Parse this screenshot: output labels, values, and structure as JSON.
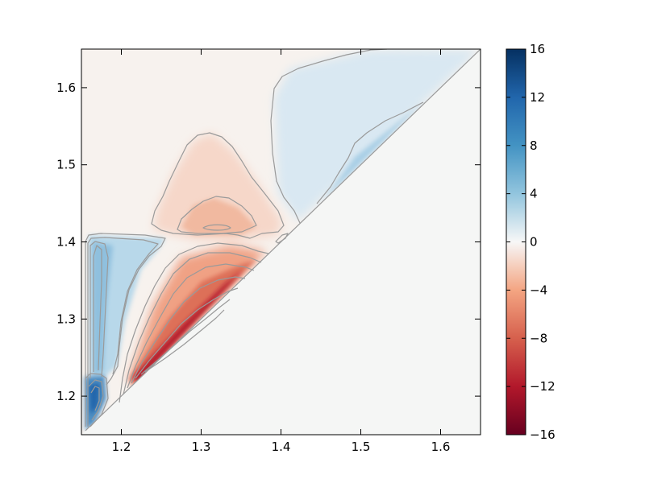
{
  "chart_data": {
    "type": "heatmap",
    "subtype": "filled-contour",
    "title": "",
    "xlabel": "",
    "ylabel": "",
    "xlim": [
      1.15,
      1.65
    ],
    "ylim": [
      1.15,
      1.65
    ],
    "xticks": [
      1.2,
      1.3,
      1.4,
      1.5,
      1.6
    ],
    "yticks": [
      1.2,
      1.3,
      1.4,
      1.5,
      1.6
    ],
    "xtick_labels": [
      "1.2",
      "1.3",
      "1.4",
      "1.5",
      "1.6"
    ],
    "ytick_labels": [
      "1.2",
      "1.3",
      "1.4",
      "1.5",
      "1.6"
    ],
    "colormap": "RdBu",
    "colormap_colors": {
      "min": "#67001f",
      "mid": "#f7f7f7",
      "max": "#053061"
    },
    "background_color": "#f5f6f5",
    "contour_color": "#9a9a9a",
    "domain": "upper triangle (y > x); lower triangle empty",
    "colorbar": {
      "range": [
        -16,
        16
      ],
      "ticks": [
        16,
        12,
        8,
        4,
        0,
        -4,
        -8,
        -12,
        -16
      ],
      "tick_labels": [
        "16",
        "12",
        "8",
        "4",
        "0",
        "−4",
        "−8",
        "−12",
        "−16"
      ],
      "location": "right"
    },
    "features": [
      {
        "region": "left vertical band",
        "x": [
          1.16,
          1.21
        ],
        "y": [
          1.16,
          1.41
        ],
        "sign": "positive",
        "peak": 6
      },
      {
        "region": "bottom-left corner",
        "x": [
          1.16,
          1.18
        ],
        "y": [
          1.16,
          1.22
        ],
        "sign": "positive",
        "peak": 12
      },
      {
        "region": "near diagonal",
        "x": [
          1.2,
          1.38
        ],
        "y": [
          1.21,
          1.39
        ],
        "sign": "negative",
        "peak": -14
      },
      {
        "region": "central lobe",
        "x": [
          1.24,
          1.38
        ],
        "y": [
          1.4,
          1.54
        ],
        "sign": "negative",
        "peak": -4
      },
      {
        "region": "upper-right wedge",
        "x": [
          1.4,
          1.65
        ],
        "y": [
          1.42,
          1.65
        ],
        "sign": "positive",
        "peak": 3
      }
    ],
    "grid": false,
    "legend": "colorbar"
  }
}
